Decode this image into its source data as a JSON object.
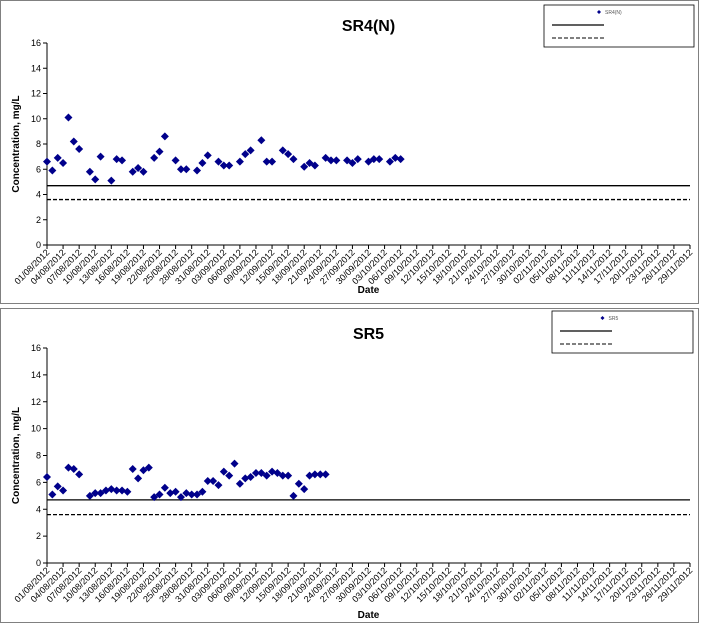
{
  "chart_data": [
    {
      "type": "scatter",
      "title": "SR4(N)",
      "xlabel": "Date",
      "ylabel": "Concentration, mg/L",
      "ylim": [
        0,
        16
      ],
      "yticks": [
        "0",
        "2",
        "4",
        "6",
        "8",
        "10",
        "12",
        "14",
        "16"
      ],
      "date_range": [
        "01/08/2012",
        "29/11/2012"
      ],
      "x_tick_labels": [
        "01/08/2012",
        "04/08/2012",
        "07/08/2012",
        "10/08/2012",
        "13/08/2012",
        "16/08/2012",
        "19/08/2012",
        "22/08/2012",
        "25/08/2012",
        "28/08/2012",
        "31/08/2012",
        "03/09/2012",
        "06/09/2012",
        "09/09/2012",
        "12/09/2012",
        "15/09/2012",
        "18/09/2012",
        "21/09/2012",
        "24/09/2012",
        "27/09/2012",
        "30/09/2012",
        "03/10/2012",
        "06/10/2012",
        "09/10/2012",
        "12/10/2012",
        "15/10/2012",
        "18/10/2012",
        "21/10/2012",
        "24/10/2012",
        "27/10/2012",
        "30/10/2012",
        "02/11/2012",
        "05/11/2012",
        "08/11/2012",
        "11/11/2012",
        "14/11/2012",
        "17/11/2012",
        "20/11/2012",
        "23/11/2012",
        "26/11/2012",
        "29/11/2012"
      ],
      "series": [
        {
          "name": "SR4(N)",
          "color": "#00008b",
          "marker": "diamond",
          "points": [
            {
              "x": "01/08/2012",
              "y": 6.6
            },
            {
              "x": "02/08/2012",
              "y": 5.9
            },
            {
              "x": "03/08/2012",
              "y": 6.9
            },
            {
              "x": "04/08/2012",
              "y": 6.5
            },
            {
              "x": "05/08/2012",
              "y": 10.1
            },
            {
              "x": "06/08/2012",
              "y": 8.2
            },
            {
              "x": "07/08/2012",
              "y": 7.6
            },
            {
              "x": "09/08/2012",
              "y": 5.8
            },
            {
              "x": "10/08/2012",
              "y": 5.2
            },
            {
              "x": "11/08/2012",
              "y": 7.0
            },
            {
              "x": "13/08/2012",
              "y": 5.1
            },
            {
              "x": "14/08/2012",
              "y": 6.8
            },
            {
              "x": "15/08/2012",
              "y": 6.7
            },
            {
              "x": "17/08/2012",
              "y": 5.8
            },
            {
              "x": "18/08/2012",
              "y": 6.1
            },
            {
              "x": "19/08/2012",
              "y": 5.8
            },
            {
              "x": "21/08/2012",
              "y": 6.9
            },
            {
              "x": "22/08/2012",
              "y": 7.4
            },
            {
              "x": "23/08/2012",
              "y": 8.6
            },
            {
              "x": "25/08/2012",
              "y": 6.7
            },
            {
              "x": "26/08/2012",
              "y": 6.0
            },
            {
              "x": "27/08/2012",
              "y": 6.0
            },
            {
              "x": "29/08/2012",
              "y": 5.9
            },
            {
              "x": "30/08/2012",
              "y": 6.5
            },
            {
              "x": "31/08/2012",
              "y": 7.1
            },
            {
              "x": "02/09/2012",
              "y": 6.6
            },
            {
              "x": "03/09/2012",
              "y": 6.3
            },
            {
              "x": "04/09/2012",
              "y": 6.3
            },
            {
              "x": "06/09/2012",
              "y": 6.6
            },
            {
              "x": "07/09/2012",
              "y": 7.2
            },
            {
              "x": "08/09/2012",
              "y": 7.5
            },
            {
              "x": "10/09/2012",
              "y": 8.3
            },
            {
              "x": "11/09/2012",
              "y": 6.6
            },
            {
              "x": "12/09/2012",
              "y": 6.6
            },
            {
              "x": "14/09/2012",
              "y": 7.5
            },
            {
              "x": "15/09/2012",
              "y": 7.2
            },
            {
              "x": "16/09/2012",
              "y": 6.8
            },
            {
              "x": "18/09/2012",
              "y": 6.2
            },
            {
              "x": "19/09/2012",
              "y": 6.5
            },
            {
              "x": "20/09/2012",
              "y": 6.3
            },
            {
              "x": "22/09/2012",
              "y": 6.9
            },
            {
              "x": "23/09/2012",
              "y": 6.7
            },
            {
              "x": "24/09/2012",
              "y": 6.7
            },
            {
              "x": "26/09/2012",
              "y": 6.7
            },
            {
              "x": "27/09/2012",
              "y": 6.5
            },
            {
              "x": "28/09/2012",
              "y": 6.8
            },
            {
              "x": "30/09/2012",
              "y": 6.6
            },
            {
              "x": "01/10/2012",
              "y": 6.8
            },
            {
              "x": "02/10/2012",
              "y": 6.8
            },
            {
              "x": "04/10/2012",
              "y": 6.6
            },
            {
              "x": "05/10/2012",
              "y": 6.9
            },
            {
              "x": "06/10/2012",
              "y": 6.8
            }
          ]
        }
      ],
      "reference_lines": [
        {
          "y": 4.7,
          "style": "solid",
          "color": "#000000"
        },
        {
          "y": 3.6,
          "style": "dashed",
          "color": "#000000"
        }
      ],
      "legend": {
        "position": "top-right"
      },
      "grid": false
    },
    {
      "type": "scatter",
      "title": "SR5",
      "xlabel": "Date",
      "ylabel": "Concentration, mg/L",
      "ylim": [
        0,
        16
      ],
      "yticks": [
        "0",
        "2",
        "4",
        "6",
        "8",
        "10",
        "12",
        "14",
        "16"
      ],
      "date_range": [
        "01/08/2012",
        "29/11/2012"
      ],
      "x_tick_labels": [
        "01/08/2012",
        "04/08/2012",
        "07/08/2012",
        "10/08/2012",
        "13/08/2012",
        "16/08/2012",
        "19/08/2012",
        "22/08/2012",
        "25/08/2012",
        "28/08/2012",
        "31/08/2012",
        "03/09/2012",
        "06/09/2012",
        "09/09/2012",
        "12/09/2012",
        "15/09/2012",
        "18/09/2012",
        "21/09/2012",
        "24/09/2012",
        "27/09/2012",
        "30/09/2012",
        "03/10/2012",
        "06/10/2012",
        "09/10/2012",
        "12/10/2012",
        "15/10/2012",
        "18/10/2012",
        "21/10/2012",
        "24/10/2012",
        "27/10/2012",
        "30/10/2012",
        "02/11/2012",
        "05/11/2012",
        "08/11/2012",
        "11/11/2012",
        "14/11/2012",
        "17/11/2012",
        "20/11/2012",
        "23/11/2012",
        "26/11/2012",
        "29/11/2012"
      ],
      "series": [
        {
          "name": "SR5",
          "color": "#00008b",
          "marker": "diamond",
          "points": [
            {
              "x": "01/08/2012",
              "y": 6.4
            },
            {
              "x": "02/08/2012",
              "y": 5.1
            },
            {
              "x": "03/08/2012",
              "y": 5.7
            },
            {
              "x": "04/08/2012",
              "y": 5.4
            },
            {
              "x": "05/08/2012",
              "y": 7.1
            },
            {
              "x": "06/08/2012",
              "y": 7.0
            },
            {
              "x": "07/08/2012",
              "y": 6.6
            },
            {
              "x": "09/08/2012",
              "y": 5.0
            },
            {
              "x": "10/08/2012",
              "y": 5.2
            },
            {
              "x": "11/08/2012",
              "y": 5.2
            },
            {
              "x": "12/08/2012",
              "y": 5.4
            },
            {
              "x": "13/08/2012",
              "y": 5.5
            },
            {
              "x": "14/08/2012",
              "y": 5.4
            },
            {
              "x": "15/08/2012",
              "y": 5.4
            },
            {
              "x": "16/08/2012",
              "y": 5.3
            },
            {
              "x": "17/08/2012",
              "y": 7.0
            },
            {
              "x": "18/08/2012",
              "y": 6.3
            },
            {
              "x": "19/08/2012",
              "y": 6.9
            },
            {
              "x": "20/08/2012",
              "y": 7.1
            },
            {
              "x": "21/08/2012",
              "y": 4.9
            },
            {
              "x": "22/08/2012",
              "y": 5.1
            },
            {
              "x": "23/08/2012",
              "y": 5.6
            },
            {
              "x": "24/08/2012",
              "y": 5.2
            },
            {
              "x": "25/08/2012",
              "y": 5.3
            },
            {
              "x": "26/08/2012",
              "y": 4.9
            },
            {
              "x": "27/08/2012",
              "y": 5.2
            },
            {
              "x": "28/08/2012",
              "y": 5.1
            },
            {
              "x": "29/08/2012",
              "y": 5.1
            },
            {
              "x": "30/08/2012",
              "y": 5.3
            },
            {
              "x": "31/08/2012",
              "y": 6.1
            },
            {
              "x": "01/09/2012",
              "y": 6.1
            },
            {
              "x": "02/09/2012",
              "y": 5.8
            },
            {
              "x": "03/09/2012",
              "y": 6.8
            },
            {
              "x": "04/09/2012",
              "y": 6.5
            },
            {
              "x": "05/09/2012",
              "y": 7.4
            },
            {
              "x": "06/09/2012",
              "y": 5.9
            },
            {
              "x": "07/09/2012",
              "y": 6.3
            },
            {
              "x": "08/09/2012",
              "y": 6.4
            },
            {
              "x": "09/09/2012",
              "y": 6.7
            },
            {
              "x": "10/09/2012",
              "y": 6.7
            },
            {
              "x": "11/09/2012",
              "y": 6.5
            },
            {
              "x": "12/09/2012",
              "y": 6.8
            },
            {
              "x": "13/09/2012",
              "y": 6.7
            },
            {
              "x": "14/09/2012",
              "y": 6.5
            },
            {
              "x": "15/09/2012",
              "y": 6.5
            },
            {
              "x": "16/09/2012",
              "y": 5.0
            },
            {
              "x": "17/09/2012",
              "y": 5.9
            },
            {
              "x": "18/09/2012",
              "y": 5.5
            },
            {
              "x": "19/09/2012",
              "y": 6.5
            },
            {
              "x": "20/09/2012",
              "y": 6.6
            },
            {
              "x": "21/09/2012",
              "y": 6.6
            },
            {
              "x": "22/09/2012",
              "y": 6.6
            }
          ]
        }
      ],
      "reference_lines": [
        {
          "y": 4.7,
          "style": "solid",
          "color": "#000000"
        },
        {
          "y": 3.6,
          "style": "dashed",
          "color": "#000000"
        }
      ],
      "legend": {
        "position": "top-right"
      },
      "grid": false
    }
  ]
}
